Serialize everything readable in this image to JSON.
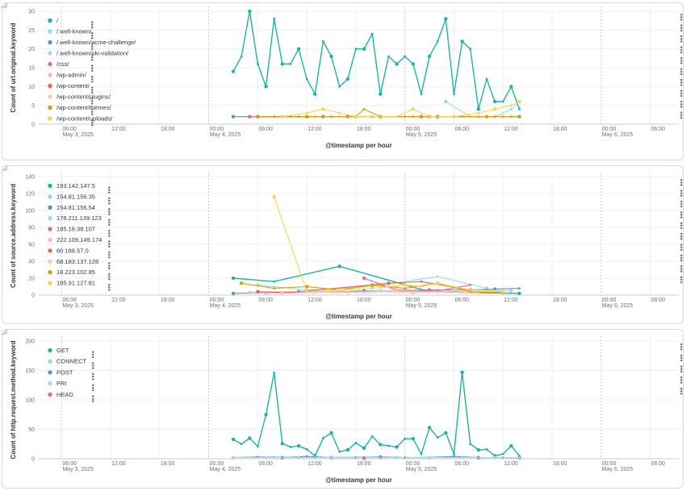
{
  "chart_data": [
    {
      "type": "line",
      "ylabel": "Count of url.original.keyword",
      "xlabel": "@timestamp per hour",
      "ylim": [
        0,
        30
      ],
      "yticks": [
        0,
        5,
        10,
        15,
        20,
        25,
        30
      ],
      "x_tick_labels": [
        {
          "t": 6,
          "text": "06:00",
          "sub": "May 3, 2025"
        },
        {
          "t": 12,
          "text": "12:00",
          "sub": ""
        },
        {
          "t": 18,
          "text": "18:00",
          "sub": ""
        },
        {
          "t": 24,
          "text": "00:00",
          "sub": "May 4, 2025"
        },
        {
          "t": 30,
          "text": "06:00",
          "sub": ""
        },
        {
          "t": 36,
          "text": "12:00",
          "sub": ""
        },
        {
          "t": 42,
          "text": "18:00",
          "sub": ""
        },
        {
          "t": 48,
          "text": "00:00",
          "sub": "May 5, 2025"
        },
        {
          "t": 54,
          "text": "06:00",
          "sub": ""
        },
        {
          "t": 60,
          "text": "12:00",
          "sub": ""
        },
        {
          "t": 66,
          "text": "18:00",
          "sub": ""
        },
        {
          "t": 72,
          "text": "00:00",
          "sub": "May 6, 2025"
        },
        {
          "t": 78,
          "text": "06:00",
          "sub": ""
        }
      ],
      "legend_position": "top-left",
      "series": [
        {
          "name": "/",
          "color": "#20b2a3",
          "x": [
            27,
            28,
            29,
            30,
            31,
            32,
            33,
            34,
            35,
            36,
            37,
            38,
            39,
            40,
            41,
            42,
            43,
            44,
            45,
            46,
            47,
            48,
            49,
            50,
            51,
            52,
            53,
            54,
            55,
            56,
            57,
            58,
            59,
            60,
            61,
            62
          ],
          "values": [
            14,
            18,
            30,
            16,
            10,
            28,
            16,
            16,
            20,
            12,
            8,
            22,
            18,
            10,
            12,
            20,
            20,
            24,
            8,
            18,
            16,
            18,
            16,
            8,
            18,
            22,
            28,
            8,
            22,
            20,
            4,
            12,
            6,
            6,
            10,
            4
          ]
        },
        {
          "name": "/.well-known/",
          "color": "#8fe0dc",
          "x": [
            53,
            56,
            59,
            61,
            62
          ],
          "values": [
            6,
            2,
            2,
            4,
            6
          ]
        },
        {
          "name": "/.well-known/acme-challenge/",
          "color": "#6092c0",
          "x": [
            27,
            32,
            38,
            44,
            50,
            56,
            62
          ],
          "values": [
            2,
            2,
            2,
            2,
            2,
            2,
            2
          ]
        },
        {
          "name": "/.well-known/pki-validation/",
          "color": "#b9cfe6",
          "x": [
            36,
            40,
            44,
            48,
            52,
            56,
            60
          ],
          "values": [
            2,
            2,
            2,
            2,
            2,
            2,
            2
          ]
        },
        {
          "name": "/css/",
          "color": "#e7669a",
          "x": [
            29,
            35,
            41,
            47,
            50,
            54
          ],
          "values": [
            2,
            2,
            2,
            2,
            2,
            2
          ]
        },
        {
          "name": "/wp-admin/",
          "color": "#f4b8cf",
          "x": [
            33,
            39,
            45,
            51,
            57
          ],
          "values": [
            2,
            2,
            2,
            2,
            2
          ]
        },
        {
          "name": "/wp-content/",
          "color": "#e7664c",
          "x": [
            30,
            34,
            42,
            48,
            52
          ],
          "values": [
            2,
            2,
            2,
            2,
            2
          ]
        },
        {
          "name": "/wp-content/plugins/",
          "color": "#f3c9bd",
          "x": [
            37,
            43,
            49,
            55,
            61
          ],
          "values": [
            2,
            2,
            2,
            2,
            2
          ]
        },
        {
          "name": "/wp-content/themes/",
          "color": "#d6a000",
          "x": [
            30,
            33,
            36,
            39,
            42,
            43,
            45,
            48,
            51,
            55,
            58,
            62
          ],
          "values": [
            2,
            2,
            2,
            2,
            2,
            4,
            2,
            2,
            2,
            2,
            2,
            2
          ]
        },
        {
          "name": "/wp-content/uploads/",
          "color": "#f5d45b",
          "x": [
            33,
            36,
            38,
            40,
            42,
            47,
            49,
            51,
            54,
            57,
            59,
            61,
            62
          ],
          "values": [
            2,
            3,
            4,
            3,
            2,
            2,
            4,
            2,
            2,
            3,
            4,
            5,
            6
          ]
        }
      ]
    },
    {
      "type": "line",
      "ylabel": "Count of source.address.keyword",
      "xlabel": "@timestamp per hour",
      "ylim": [
        0,
        140
      ],
      "yticks": [
        0,
        20,
        40,
        60,
        80,
        100,
        120,
        140
      ],
      "x_tick_labels": [
        {
          "t": 6,
          "text": "06:00",
          "sub": "May 3, 2025"
        },
        {
          "t": 12,
          "text": "12:00",
          "sub": ""
        },
        {
          "t": 18,
          "text": "18:00",
          "sub": ""
        },
        {
          "t": 24,
          "text": "00:00",
          "sub": "May 4, 2025"
        },
        {
          "t": 30,
          "text": "06:00",
          "sub": ""
        },
        {
          "t": 36,
          "text": "12:00",
          "sub": ""
        },
        {
          "t": 42,
          "text": "18:00",
          "sub": ""
        },
        {
          "t": 48,
          "text": "00:00",
          "sub": "May 5, 2025"
        },
        {
          "t": 54,
          "text": "06:00",
          "sub": ""
        },
        {
          "t": 60,
          "text": "12:00",
          "sub": ""
        },
        {
          "t": 66,
          "text": "18:00",
          "sub": ""
        },
        {
          "t": 72,
          "text": "00:00",
          "sub": "May 6, 2025"
        },
        {
          "t": 78,
          "text": "06:00",
          "sub": ""
        }
      ],
      "legend_position": "top-left",
      "series": [
        {
          "name": "193.142.147.5",
          "color": "#20b2a3",
          "x": [
            27,
            32,
            40,
            51,
            62
          ],
          "values": [
            20,
            16,
            34,
            4,
            2
          ]
        },
        {
          "name": "154.81.156.35",
          "color": "#8fe0dc",
          "x": [
            30,
            36,
            44,
            52,
            58
          ],
          "values": [
            12,
            6,
            10,
            22,
            8
          ]
        },
        {
          "name": "154.81.156.54",
          "color": "#6092c0",
          "x": [
            27,
            31,
            35,
            39,
            43,
            47,
            51,
            55,
            59,
            62
          ],
          "values": [
            2,
            3,
            4,
            4,
            5,
            5,
            6,
            6,
            7,
            8
          ]
        },
        {
          "name": "178.211.139.123",
          "color": "#b9cfe6",
          "x": [
            29,
            33,
            37,
            41,
            45,
            49,
            53,
            57,
            61
          ],
          "values": [
            3,
            4,
            4,
            3,
            5,
            4,
            4,
            6,
            5
          ]
        },
        {
          "name": "185.16.38.107",
          "color": "#e7669a",
          "x": [
            43,
            47,
            52,
            56
          ],
          "values": [
            20,
            6,
            5,
            12
          ]
        },
        {
          "name": "222.109.149.174",
          "color": "#f4b8cf",
          "x": [
            31,
            35,
            39,
            43,
            47,
            51,
            55,
            59
          ],
          "values": [
            2,
            3,
            4,
            3,
            5,
            4,
            6,
            5
          ]
        },
        {
          "name": "60.188.57.0",
          "color": "#e7664c",
          "x": [
            30,
            34,
            46,
            50,
            56
          ],
          "values": [
            4,
            3,
            14,
            16,
            6
          ]
        },
        {
          "name": "68.183.137.128",
          "color": "#f3c9bd",
          "x": [
            33,
            37,
            41,
            45,
            49,
            53,
            57
          ],
          "values": [
            2,
            3,
            3,
            4,
            3,
            4,
            3
          ]
        },
        {
          "name": "18.223.102.85",
          "color": "#d6a000",
          "x": [
            28,
            32,
            36,
            40,
            44,
            48,
            52,
            56,
            60
          ],
          "values": [
            14,
            8,
            10,
            6,
            12,
            8,
            14,
            4,
            3
          ]
        },
        {
          "name": "185.91.127.81",
          "color": "#f5d45b",
          "x": [
            32,
            36,
            40,
            44,
            48,
            50,
            52,
            56,
            60
          ],
          "values": [
            116,
            4,
            6,
            8,
            12,
            10,
            14,
            6,
            4
          ]
        }
      ]
    },
    {
      "type": "line",
      "ylabel": "Count of http.request.method.keyword",
      "xlabel": "@timestamp per hour",
      "ylim": [
        0,
        200
      ],
      "yticks": [
        0,
        50,
        100,
        150,
        200
      ],
      "x_tick_labels": [
        {
          "t": 6,
          "text": "06:00",
          "sub": "May 3, 2025"
        },
        {
          "t": 12,
          "text": "12:00",
          "sub": ""
        },
        {
          "t": 18,
          "text": "18:00",
          "sub": ""
        },
        {
          "t": 24,
          "text": "00:00",
          "sub": "May 4, 2025"
        },
        {
          "t": 30,
          "text": "06:00",
          "sub": ""
        },
        {
          "t": 36,
          "text": "12:00",
          "sub": ""
        },
        {
          "t": 42,
          "text": "18:00",
          "sub": ""
        },
        {
          "t": 48,
          "text": "00:00",
          "sub": "May 5, 2025"
        },
        {
          "t": 54,
          "text": "06:00",
          "sub": ""
        },
        {
          "t": 60,
          "text": "12:00",
          "sub": ""
        },
        {
          "t": 66,
          "text": "18:00",
          "sub": ""
        },
        {
          "t": 72,
          "text": "00:00",
          "sub": "May 6, 2025"
        },
        {
          "t": 78,
          "text": "06:00",
          "sub": ""
        }
      ],
      "legend_position": "top-left",
      "series": [
        {
          "name": "GET",
          "color": "#20b2a3",
          "x": [
            27,
            28,
            29,
            30,
            31,
            32,
            33,
            34,
            35,
            36,
            37,
            38,
            39,
            40,
            41,
            42,
            43,
            44,
            45,
            46,
            47,
            48,
            49,
            50,
            51,
            52,
            53,
            54,
            55,
            56,
            57,
            58,
            59,
            60,
            61,
            62
          ],
          "values": [
            33,
            25,
            35,
            21,
            75,
            146,
            26,
            20,
            22,
            16,
            5,
            35,
            44,
            12,
            15,
            27,
            18,
            38,
            24,
            22,
            20,
            34,
            34,
            8,
            53,
            36,
            44,
            8,
            147,
            25,
            15,
            16,
            5,
            8,
            22,
            5
          ]
        },
        {
          "name": "CONNECT",
          "color": "#8fe0dc",
          "x": [
            27,
            32,
            37,
            42,
            47,
            52,
            57,
            62
          ],
          "values": [
            2,
            3,
            2,
            3,
            2,
            3,
            2,
            2
          ]
        },
        {
          "name": "POST",
          "color": "#6092c0",
          "x": [
            27,
            30,
            33,
            36,
            39,
            42,
            45,
            48,
            51,
            54,
            57,
            60,
            62
          ],
          "values": [
            2,
            3,
            2,
            4,
            2,
            2,
            3,
            2,
            2,
            4,
            2,
            2,
            2
          ]
        },
        {
          "name": "PRI",
          "color": "#b9cfe6",
          "x": [
            27,
            31,
            35,
            39,
            43,
            47,
            51,
            55,
            59,
            62
          ],
          "values": [
            2,
            2,
            2,
            2,
            2,
            2,
            2,
            2,
            2,
            2
          ]
        },
        {
          "name": "HEAD",
          "color": "#e7669a",
          "x": [
            43
          ],
          "values": [
            1
          ]
        }
      ]
    }
  ]
}
